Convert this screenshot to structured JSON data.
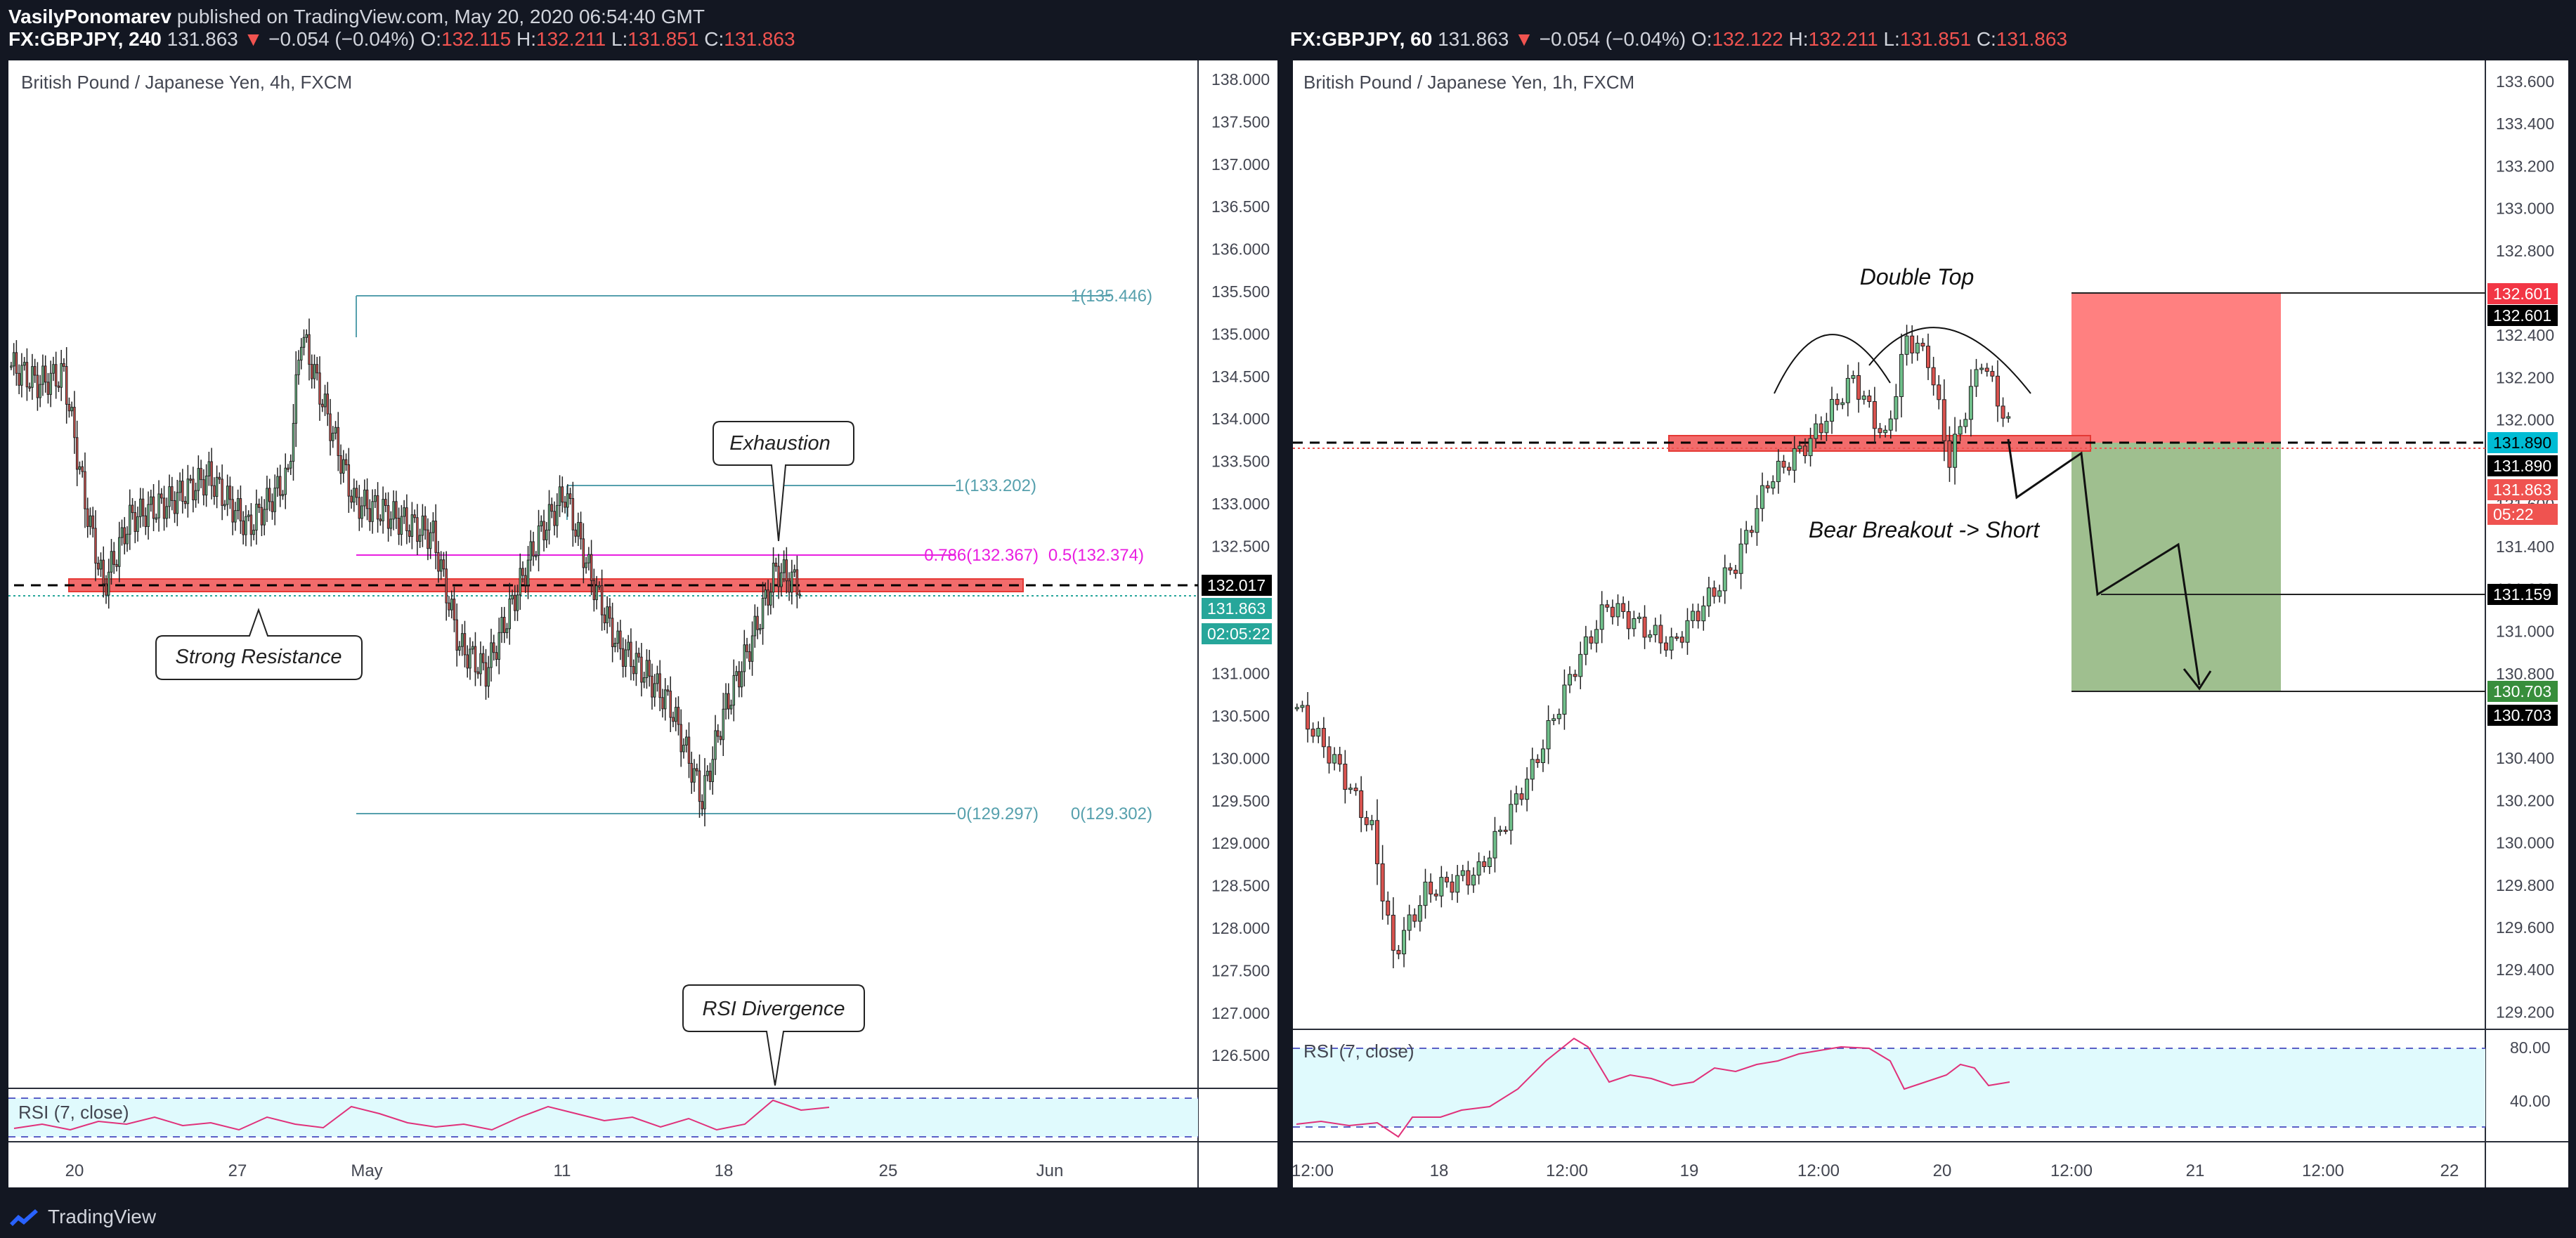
{
  "header": {
    "publisher": "VasilyPonomarev",
    "published_text": "published on TradingView.com, May 20, 2020 06:54:40 GMT"
  },
  "footer": {
    "brand": "TradingView"
  },
  "colors": {
    "up": "#26a69a",
    "down": "#ef5350",
    "background": "#ffffff",
    "fib": "#56a0ad",
    "magenta": "#e91ee0",
    "rsi_line": "#e0317a",
    "rsi_fill": "#e0fafd",
    "zone_red": "#f26b6b",
    "zone_green": "#9fbf8f"
  },
  "icons": {
    "logo": "tradingview-logo-icon",
    "arrow_down": "triangle-down-icon"
  },
  "panels": [
    {
      "symbol": "FX:GBPJPY, 240",
      "last": "131.863",
      "change": "−0.054 (−0.04%)",
      "ohlc": [
        {
          "k": "O:",
          "v": "132.115"
        },
        {
          "k": "H:",
          "v": "132.211"
        },
        {
          "k": "L:",
          "v": "131.851"
        },
        {
          "k": "C:",
          "v": "131.863"
        }
      ],
      "title": "British Pound / Japanese Yen, 4h, FXCM",
      "y_ticks": [
        "138.000",
        "137.500",
        "137.000",
        "136.500",
        "136.000",
        "135.500",
        "135.000",
        "134.500",
        "134.000",
        "133.500",
        "133.000",
        "132.500",
        "132.000",
        "131.500",
        "131.000",
        "130.500",
        "130.000",
        "129.500",
        "129.000",
        "128.500",
        "128.000",
        "127.500",
        "127.000",
        "126.500"
      ],
      "x_ticks": [
        "20",
        "27",
        "May",
        "11",
        "18",
        "25",
        "Jun"
      ],
      "price_tags": [
        {
          "text": "132.017",
          "bg": "#000000",
          "fg": "#ffffff"
        },
        {
          "text": "131.863",
          "bg": "#26a69a",
          "fg": "#ffffff"
        },
        {
          "text": "02:05:22",
          "bg": "#26a69a",
          "fg": "#ffffff"
        }
      ],
      "fib_labels": [
        "1(135.446)",
        "1(133.202)",
        "0.786(132.367)",
        "0.5(132.374)",
        "0(129.297)",
        "0(129.302)"
      ],
      "annotations": {
        "exhaustion": "Exhaustion",
        "strong_resistance": "Strong Resistance",
        "rsi_divergence": "RSI Divergence"
      },
      "rsi_label": "RSI (7, close)"
    },
    {
      "symbol": "FX:GBPJPY, 60",
      "last": "131.863",
      "change": "−0.054 (−0.04%)",
      "ohlc": [
        {
          "k": "O:",
          "v": "132.122"
        },
        {
          "k": "H:",
          "v": "132.211"
        },
        {
          "k": "L:",
          "v": "131.851"
        },
        {
          "k": "C:",
          "v": "131.863"
        }
      ],
      "title": "British Pound / Japanese Yen, 1h, FXCM",
      "y_ticks": [
        "133.600",
        "133.400",
        "133.200",
        "133.000",
        "132.800",
        "132.600",
        "132.400",
        "132.200",
        "132.000",
        "131.800",
        "131.600",
        "131.400",
        "131.200",
        "131.000",
        "130.800",
        "130.600",
        "130.400",
        "130.200",
        "130.000",
        "129.800",
        "129.600",
        "129.400",
        "129.200"
      ],
      "x_ticks": [
        "12:00",
        "18",
        "12:00",
        "19",
        "12:00",
        "20",
        "12:00",
        "21",
        "12:00",
        "22"
      ],
      "price_tags": [
        {
          "text": "132.601",
          "bg": "#f23645",
          "fg": "#ffffff"
        },
        {
          "text": "132.601",
          "bg": "#000000",
          "fg": "#ffffff"
        },
        {
          "text": "131.890",
          "bg": "#00bcd4",
          "fg": "#000000"
        },
        {
          "text": "131.890",
          "bg": "#000000",
          "fg": "#ffffff"
        },
        {
          "text": "131.863",
          "bg": "#ef5350",
          "fg": "#ffffff"
        },
        {
          "text": "05:22",
          "bg": "#ef5350",
          "fg": "#ffffff"
        },
        {
          "text": "131.159",
          "bg": "#000000",
          "fg": "#ffffff"
        },
        {
          "text": "130.703",
          "bg": "#388e3c",
          "fg": "#ffffff"
        },
        {
          "text": "130.703",
          "bg": "#000000",
          "fg": "#ffffff"
        }
      ],
      "annotations": {
        "double_top": "Double Top",
        "breakout": "Bear Breakout -> Short"
      },
      "rsi_label": "RSI (7, close)",
      "rsi_ticks": [
        "80.00",
        "40.00"
      ]
    }
  ],
  "chart_data": [
    {
      "type": "candlestick",
      "title": "British Pound / Japanese Yen, 4h, FXCM",
      "ylim": [
        126.0,
        138.2
      ],
      "x_ticks": [
        "20",
        "27",
        "May",
        "11",
        "18",
        "25",
        "Jun"
      ],
      "levels": [
        {
          "name": "1(135.446)",
          "y": 135.446
        },
        {
          "name": "1(133.202)",
          "y": 133.202
        },
        {
          "name": "0.5(132.374)",
          "y": 132.374
        },
        {
          "name": "0(129.302)",
          "y": 129.302
        }
      ],
      "last_price": 131.863,
      "indicator": {
        "name": "RSI (7, close)"
      }
    },
    {
      "type": "candlestick",
      "title": "British Pound / Japanese Yen, 1h, FXCM",
      "ylim": [
        129.05,
        133.75
      ],
      "x_ticks": [
        "12:00",
        "18",
        "12:00",
        "19",
        "12:00",
        "20",
        "12:00",
        "21",
        "12:00",
        "22"
      ],
      "levels": [
        {
          "name": "stop",
          "y": 132.601
        },
        {
          "name": "entry",
          "y": 131.89
        },
        {
          "name": "target_1",
          "y": 131.159
        },
        {
          "name": "target_2",
          "y": 130.703
        }
      ],
      "last_price": 131.863,
      "indicator": {
        "name": "RSI (7, close)",
        "ticks": [
          80,
          40
        ]
      }
    }
  ]
}
